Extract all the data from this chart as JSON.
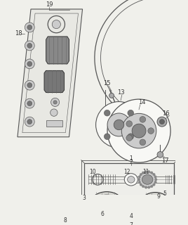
{
  "bg_color": "#f0f0eb",
  "line_color": "#555555",
  "dark_color": "#333333",
  "gray_fill": "#aaaaaa",
  "light_gray": "#cccccc",
  "white": "#f8f8f5"
}
